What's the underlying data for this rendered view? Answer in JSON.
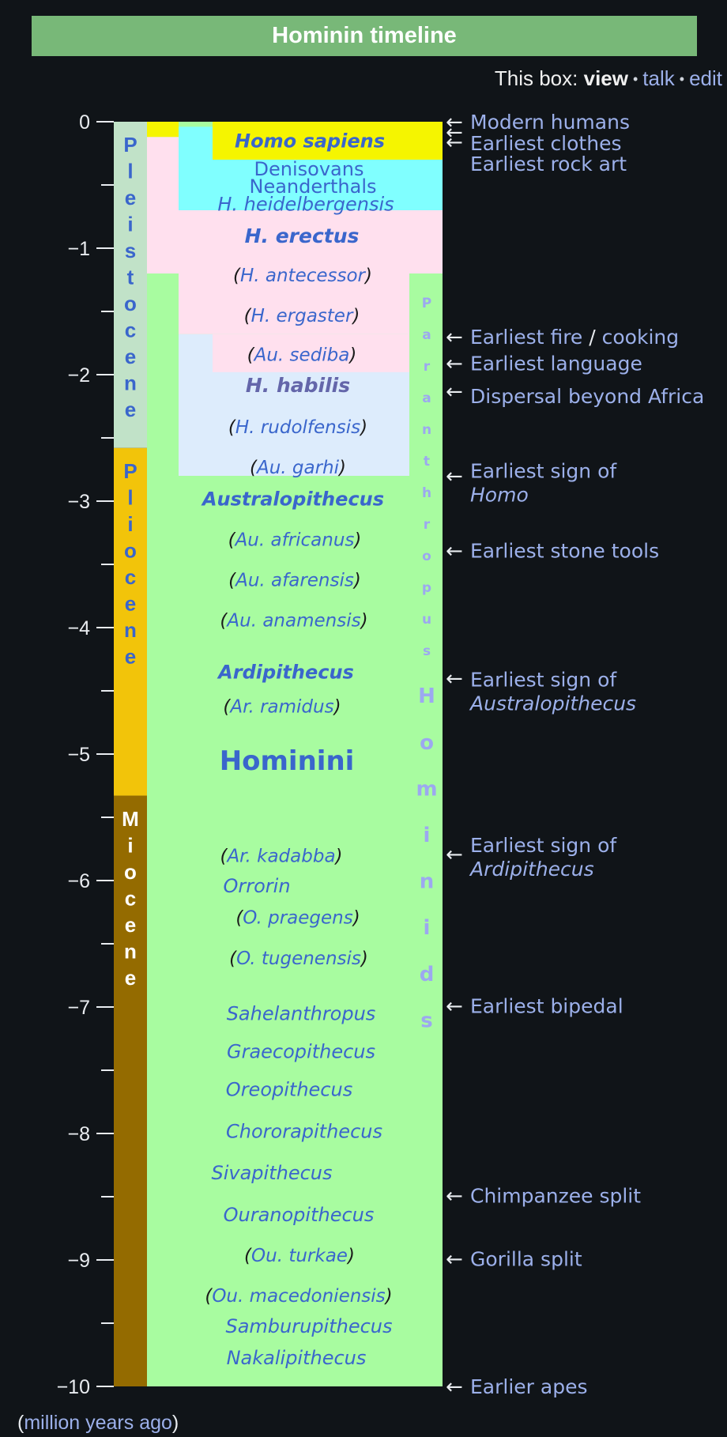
{
  "title": "Hominin timeline",
  "navbox": {
    "prefix": "This box:",
    "view": "view",
    "talk": "talk",
    "edit": "edit"
  },
  "units": {
    "open": "(",
    "label": "million years ago",
    "close": ")"
  },
  "colors": {
    "pleistocene": "#c1e2c8",
    "pliocene": "#f2c40a",
    "miocene": "#946b00",
    "hominids": "#a8fca0",
    "homo_sapiens": "#f5f500",
    "denisovans": "#80ffff",
    "homo": "#ffe0ee",
    "australopithecines": "#ddecfc",
    "text_blue": "#3a66cc",
    "text_purple": "#6466aa",
    "link": "#9cb0ea",
    "light_label": "#9ca8f0"
  },
  "chart_data": {
    "type": "timeline",
    "axis": {
      "range": [
        0,
        -10
      ],
      "ticks": [
        0,
        -1,
        -2,
        -3,
        -4,
        -5,
        -6,
        -7,
        -8,
        -9,
        -10
      ],
      "tick_labels": [
        "0",
        "−1",
        "−2",
        "−3",
        "−4",
        "−5",
        "−6",
        "−7",
        "−8",
        "−9",
        "−10"
      ],
      "minor_ticks": [
        -0.5,
        -1.5,
        -2.5,
        -3.5,
        -4.5,
        -5.5,
        -6.5,
        -7.5,
        -8.5,
        -9.5
      ]
    },
    "epochs": [
      {
        "name": "Pleistocene",
        "label": "Pleistocene",
        "from": 0,
        "to": -2.58,
        "color": "#c1e2c8",
        "text_color": "#3a66cc"
      },
      {
        "name": "Pliocene",
        "label": "Pliocene",
        "from": -2.58,
        "to": -5.33,
        "color": "#f2c40a",
        "text_color": "#3a66cc"
      },
      {
        "name": "Miocene",
        "label": "Miocene",
        "from": -5.33,
        "to": -10,
        "color": "#946b00",
        "text_color": "#ffffff"
      }
    ],
    "bands": [
      {
        "name": "hominids",
        "from": -1.2,
        "to": -10,
        "color": "#a8fca0"
      },
      {
        "name": "hominids-top",
        "from": 0,
        "to": -1.2,
        "color": "#a8fca0"
      },
      {
        "name": "homo",
        "from": -0.12,
        "to": -1.2,
        "color": "#ffe0ee"
      },
      {
        "name": "homo-inner",
        "from": -1.2,
        "to": -1.68,
        "color": "#ffe0ee"
      },
      {
        "name": "australopithecines",
        "from": -1.68,
        "to": -2.8,
        "color": "#ddecfc"
      },
      {
        "name": "sediba-band",
        "from": -1.68,
        "to": -1.98,
        "color": "#ffe0ee"
      },
      {
        "name": "denisovans",
        "from": -0.04,
        "to": -0.7,
        "color": "#80ffff"
      },
      {
        "name": "homo-sapiens",
        "from": 0,
        "to": -0.3,
        "color": "#f5f500"
      },
      {
        "name": "homo-sapiens-left",
        "from": 0,
        "to": -0.12,
        "color": "#f5f500"
      }
    ],
    "taxa": [
      {
        "label": "Homo sapiens",
        "mya": -0.15,
        "col": 392,
        "style": "bold-italic",
        "size": 24
      },
      {
        "label": "Denisovans",
        "mya": -0.37,
        "col": 391,
        "style": "normal",
        "size": 24
      },
      {
        "label": "Neanderthals",
        "mya": -0.51,
        "col": 396,
        "style": "normal",
        "size": 24
      },
      {
        "label": "H. heidelbergensis",
        "mya": -0.65,
        "col": 387,
        "style": "italic",
        "size": 24
      },
      {
        "label": "H. erectus",
        "mya": -0.9,
        "col": 382,
        "style": "bold-italic",
        "size": 25
      },
      {
        "label": "H. antecessor",
        "mya": -1.21,
        "col": 383,
        "style": "italic",
        "size": 23,
        "paren": true
      },
      {
        "label": "H. ergaster",
        "mya": -1.53,
        "col": 382,
        "style": "italic",
        "size": 23,
        "paren": true
      },
      {
        "label": "Au. sediba",
        "mya": -1.84,
        "col": 382,
        "style": "italic",
        "size": 23,
        "paren": true
      },
      {
        "label": "H. habilis",
        "mya": -2.08,
        "col": 377,
        "style": "bold-italic",
        "size": 25,
        "color": "#6466aa"
      },
      {
        "label": "H. rudolfensis",
        "mya": -2.41,
        "col": 377,
        "style": "italic",
        "size": 23,
        "paren": true
      },
      {
        "label": "Au. garhi",
        "mya": -2.73,
        "col": 377,
        "style": "italic",
        "size": 23,
        "paren": true
      },
      {
        "label": "Australopithecus",
        "mya": -2.98,
        "col": 371,
        "style": "bold-italic",
        "size": 24
      },
      {
        "label": "Au. africanus",
        "mya": -3.3,
        "col": 373,
        "style": "italic",
        "size": 23,
        "paren": true
      },
      {
        "label": "Au. afarensis",
        "mya": -3.62,
        "col": 373,
        "style": "italic",
        "size": 23,
        "paren": true
      },
      {
        "label": "Au. anamensis",
        "mya": -3.94,
        "col": 372,
        "style": "italic",
        "size": 23,
        "paren": true
      },
      {
        "label": "Ardipithecus",
        "mya": -4.35,
        "col": 362,
        "style": "bold-italic",
        "size": 24
      },
      {
        "label": "Ar. ramidus",
        "mya": -4.62,
        "col": 357,
        "style": "italic",
        "size": 23,
        "paren": true
      },
      {
        "label": "Hominini",
        "mya": -5.05,
        "col": 363,
        "style": "bold",
        "size": 34
      },
      {
        "label": "Ar. kadabba",
        "mya": -5.8,
        "col": 356,
        "style": "italic",
        "size": 23,
        "paren": true
      },
      {
        "label": "Orrorin",
        "mya": -6.04,
        "col": 325,
        "style": "italic",
        "size": 24
      },
      {
        "label": "O. praegens",
        "mya": -6.29,
        "col": 377,
        "style": "italic",
        "size": 23,
        "paren": true
      },
      {
        "label": "O. tugenensis",
        "mya": -6.61,
        "col": 378,
        "style": "italic",
        "size": 23,
        "paren": true
      },
      {
        "label": "Sahelanthropus",
        "mya": -7.05,
        "col": 381,
        "style": "italic",
        "size": 24
      },
      {
        "label": "Graecopithecus",
        "mya": -7.35,
        "col": 381,
        "style": "italic",
        "size": 24
      },
      {
        "label": "Oreopithecus",
        "mya": -7.65,
        "col": 366,
        "style": "italic",
        "size": 24
      },
      {
        "label": "Chororapithecus",
        "mya": -7.98,
        "col": 385,
        "style": "italic",
        "size": 24
      },
      {
        "label": "Sivapithecus",
        "mya": -8.31,
        "col": 344,
        "style": "italic",
        "size": 24
      },
      {
        "label": "Ouranopithecus",
        "mya": -8.64,
        "col": 378,
        "style": "italic",
        "size": 24
      },
      {
        "label": "Ou. turkae",
        "mya": -8.96,
        "col": 379,
        "style": "italic",
        "size": 23,
        "paren": true
      },
      {
        "label": "Ou. macedoniensis",
        "mya": -9.28,
        "col": 378,
        "style": "italic",
        "size": 23,
        "paren": true
      },
      {
        "label": "Samburupithecus",
        "mya": -9.52,
        "col": 391,
        "style": "italic",
        "size": 24
      },
      {
        "label": "Nakalipithecus",
        "mya": -9.77,
        "col": 375,
        "style": "italic",
        "size": 24
      }
    ],
    "vertical_labels": [
      {
        "label": "Paranthropus",
        "from": -1.28,
        "to": -4.28,
        "col": 540,
        "size": 17,
        "weight": "bold",
        "color": "#9ca8f0"
      },
      {
        "label": "Hominids",
        "from": -4.32,
        "to": -7.25,
        "col": 540,
        "size": 26,
        "weight": "bold",
        "color": "#9ca8f0"
      }
    ],
    "events": [
      {
        "label": "Modern humans",
        "mya": -0.0,
        "text_mya": -0.0
      },
      {
        "label": "Earliest clothes",
        "mya": -0.08,
        "text_mya": -0.17
      },
      {
        "label": "Earliest rock art",
        "mya": -0.16,
        "text_mya": -0.33
      },
      {
        "parts": [
          "Earliest fire",
          " / ",
          "cooking"
        ],
        "label": "Earliest fire / cooking",
        "mya": -1.7,
        "text_mya": -1.7
      },
      {
        "label": "Earliest language",
        "mya": -1.91,
        "text_mya": -1.91
      },
      {
        "label": "Dispersal beyond Africa",
        "mya": -2.13,
        "text_mya": -2.17
      },
      {
        "label": "Earliest sign of",
        "label2": "Homo",
        "mya": -2.8,
        "text_mya": -2.76
      },
      {
        "label": "Earliest stone tools",
        "mya": -3.39,
        "text_mya": -3.39
      },
      {
        "label": "Earliest sign of",
        "label2": "Australopithecus",
        "mya": -4.4,
        "text_mya": -4.41
      },
      {
        "label": "Earliest sign of",
        "label2": "Ardipithecus",
        "mya": -5.79,
        "text_mya": -5.72
      },
      {
        "label": "Earliest bipedal",
        "mya": -6.99,
        "text_mya": -6.99
      },
      {
        "label": "Chimpanzee split",
        "mya": -8.49,
        "text_mya": -8.49
      },
      {
        "label": "Gorilla split",
        "mya": -8.99,
        "text_mya": -8.99
      },
      {
        "label": "Earlier apes",
        "mya": -10,
        "text_mya": -10
      }
    ]
  }
}
